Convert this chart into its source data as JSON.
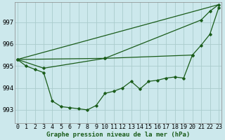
{
  "background_color": "#cce8ec",
  "grid_color": "#aacccc",
  "line_color": "#1a5c1a",
  "spine_color": "#888888",
  "x_labels": [
    "0",
    "1",
    "2",
    "3",
    "4",
    "5",
    "6",
    "7",
    "8",
    "9",
    "10",
    "11",
    "12",
    "13",
    "14",
    "15",
    "16",
    "17",
    "18",
    "19",
    "20",
    "21",
    "22",
    "23"
  ],
  "y_ticks": [
    993,
    994,
    995,
    996,
    997
  ],
  "ylim": [
    992.4,
    997.9
  ],
  "xlim": [
    -0.3,
    23.3
  ],
  "xlabel": "Graphe pression niveau de la mer (hPa)",
  "xlabel_fontsize": 6.5,
  "tick_fontsize": 6,
  "ytick_fontsize": 6.5,
  "line1_x": [
    0,
    1,
    2,
    3,
    4,
    5,
    6,
    7,
    8,
    9,
    10,
    11,
    12,
    13,
    14,
    15,
    16,
    17,
    18,
    19,
    20
  ],
  "line1_y": [
    995.3,
    995.0,
    994.85,
    994.7,
    993.4,
    993.15,
    993.1,
    993.05,
    993.0,
    993.2,
    993.75,
    993.85,
    994.0,
    994.3,
    993.95,
    994.3,
    994.35,
    994.45,
    994.5,
    994.45,
    995.5
  ],
  "line2_x": [
    0,
    3,
    10,
    20,
    21,
    22,
    23
  ],
  "line2_y": [
    995.3,
    994.9,
    995.35,
    995.5,
    995.95,
    996.45,
    997.65
  ],
  "line3_x": [
    0,
    10,
    21,
    22,
    23
  ],
  "line3_y": [
    995.3,
    995.35,
    997.1,
    997.5,
    997.8
  ],
  "line4_x": [
    0,
    23
  ],
  "line4_y": [
    995.3,
    997.8
  ]
}
